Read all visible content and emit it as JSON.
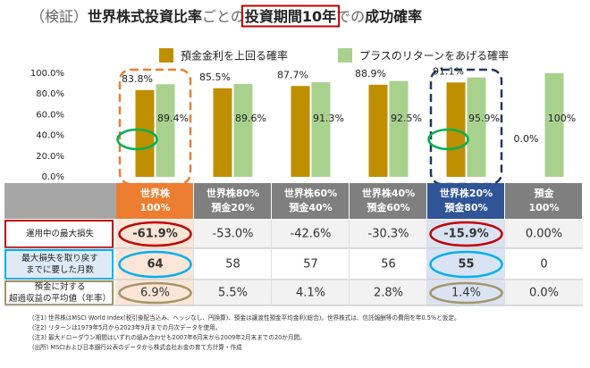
{
  "chart_data": {
    "type": "bar",
    "title_parts": [
      "（検証）",
      "世界株式投資比率",
      "ごとの",
      "投資期間10年",
      "での",
      "成功確率"
    ],
    "categories": [
      [
        "世界株",
        "100%"
      ],
      [
        "世界株80%",
        "預金20%"
      ],
      [
        "世界株60%",
        "預金40%"
      ],
      [
        "世界株40%",
        "預金60%"
      ],
      [
        "世界株20%",
        "預金80%"
      ],
      [
        "預金",
        "100%"
      ]
    ],
    "series": [
      {
        "name": "預金金利を上回る確率",
        "color": "#bf8f00",
        "values": [
          83.8,
          85.5,
          87.7,
          88.9,
          91.1,
          0.0
        ],
        "value_labels": [
          "83.8%",
          "85.5%",
          "87.7%",
          "88.9%",
          "91.1%",
          "0.0%"
        ]
      },
      {
        "name": "プラスのリターンをあげる確率",
        "color": "#a9d18e",
        "values": [
          89.4,
          89.6,
          91.3,
          92.5,
          95.9,
          100
        ],
        "value_labels": [
          "89.4%",
          "89.6%",
          "91.3%",
          "92.5%",
          "95.9%",
          "100%"
        ]
      }
    ],
    "ylim": [
      0,
      100
    ],
    "yticks": [
      {
        "value": 0,
        "label": "0.0%"
      },
      {
        "value": 20,
        "label": "20.0%"
      },
      {
        "value": 40,
        "label": "40.0%"
      },
      {
        "value": 60,
        "label": "60.0%"
      },
      {
        "value": 80,
        "label": "80.0%"
      },
      {
        "value": 100,
        "label": "100.0%"
      }
    ],
    "grid": false
  },
  "table": {
    "rows": [
      {
        "label": [
          "運用中の最大損失"
        ],
        "cells": [
          "-61.9%",
          "-53.0%",
          "-42.6%",
          "-30.3%",
          "-15.9%",
          "0.00%"
        ]
      },
      {
        "label": [
          "最大損失を取り戻す",
          "までに要した月数"
        ],
        "cells": [
          "64",
          "58",
          "57",
          "56",
          "55",
          "0"
        ]
      },
      {
        "label": [
          "預金に対する",
          "超過収益の平均値（年率）"
        ],
        "cells": [
          "6.9%",
          "5.5%",
          "4.1%",
          "2.8%",
          "1.4%",
          "0.0%"
        ]
      }
    ]
  },
  "footnotes": [
    "(注1) 世界株はMSCI World Index(税引後配当込み、ヘッジなし、円換算)、預金は譲渡性預金平均金利(総合)。世界株式は、信託報酬等の費用を年0.5%と仮定。",
    "(注2) リターンは1979年5月から2023年9月までの月次データを使用。",
    "(注3) 最大ドローダウン期間はいずれの組み合わせも2007年6月末から2009年2月末までの20か月間。",
    "(出所) MSCIおよび日本銀行公表のデータから株式会社お金の育て方計算・作成"
  ]
}
